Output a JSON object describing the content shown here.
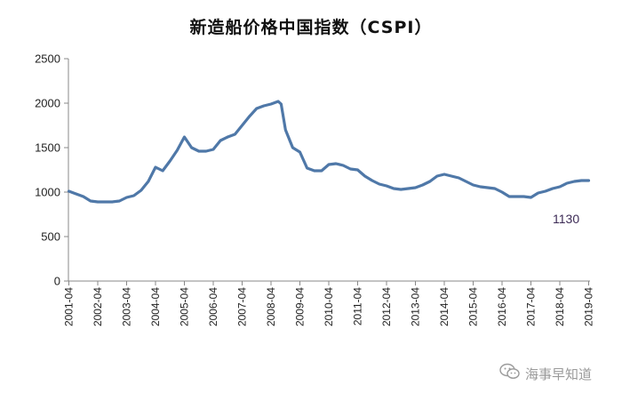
{
  "chart_data": {
    "type": "line",
    "title": "新造船价格中国指数（CSPI）",
    "xlabel": "",
    "ylabel": "",
    "ylim": [
      0,
      2500
    ],
    "yticks": [
      "0",
      "500",
      "1000",
      "1500",
      "2000",
      "2500"
    ],
    "xticks": [
      "2001-04",
      "2002-04",
      "2003-04",
      "2004-04",
      "2005-04",
      "2006-04",
      "2007-04",
      "2008-04",
      "2009-04",
      "2010-04",
      "2011-04",
      "2012-04",
      "2013-04",
      "2014-04",
      "2015-04",
      "2016-04",
      "2017-04",
      "2018-04",
      "2019-04"
    ],
    "grid": false,
    "line_color": "#4f78a8",
    "series": [
      {
        "x": [
          2001.25,
          2001.5,
          2001.75,
          2002.0,
          2002.25,
          2002.5,
          2002.75,
          2003.0,
          2003.25,
          2003.5,
          2003.75,
          2004.0,
          2004.25,
          2004.5,
          2004.75,
          2005.0,
          2005.25,
          2005.5,
          2005.75,
          2006.0,
          2006.25,
          2006.5,
          2006.75,
          2007.0,
          2007.25,
          2007.5,
          2007.75,
          2008.0,
          2008.25,
          2008.5,
          2008.6,
          2008.75,
          2009.0,
          2009.25,
          2009.5,
          2009.75,
          2010.0,
          2010.25,
          2010.5,
          2010.75,
          2011.0,
          2011.25,
          2011.5,
          2011.75,
          2012.0,
          2012.25,
          2012.5,
          2012.75,
          2013.0,
          2013.25,
          2013.5,
          2013.75,
          2014.0,
          2014.25,
          2014.5,
          2014.75,
          2015.0,
          2015.25,
          2015.5,
          2015.75,
          2016.0,
          2016.25,
          2016.5,
          2016.75,
          2017.0,
          2017.25,
          2017.5,
          2017.75,
          2018.0,
          2018.25,
          2018.5,
          2018.75,
          2019.0,
          2019.25
        ],
        "values": [
          1010,
          980,
          950,
          900,
          890,
          890,
          890,
          900,
          940,
          960,
          1020,
          1120,
          1280,
          1240,
          1350,
          1470,
          1620,
          1500,
          1460,
          1460,
          1480,
          1580,
          1620,
          1650,
          1750,
          1850,
          1940,
          1970,
          1990,
          2020,
          1990,
          1700,
          1500,
          1450,
          1270,
          1240,
          1240,
          1310,
          1320,
          1300,
          1260,
          1250,
          1180,
          1130,
          1090,
          1070,
          1040,
          1030,
          1040,
          1050,
          1080,
          1120,
          1180,
          1200,
          1180,
          1160,
          1120,
          1080,
          1060,
          1050,
          1040,
          1000,
          950,
          950,
          950,
          940,
          990,
          1010,
          1040,
          1060,
          1100,
          1120,
          1130,
          1130
        ]
      }
    ],
    "annotations": [
      "1130"
    ]
  },
  "watermark": {
    "text": "海事早知道",
    "icon": "wechat-icon"
  }
}
